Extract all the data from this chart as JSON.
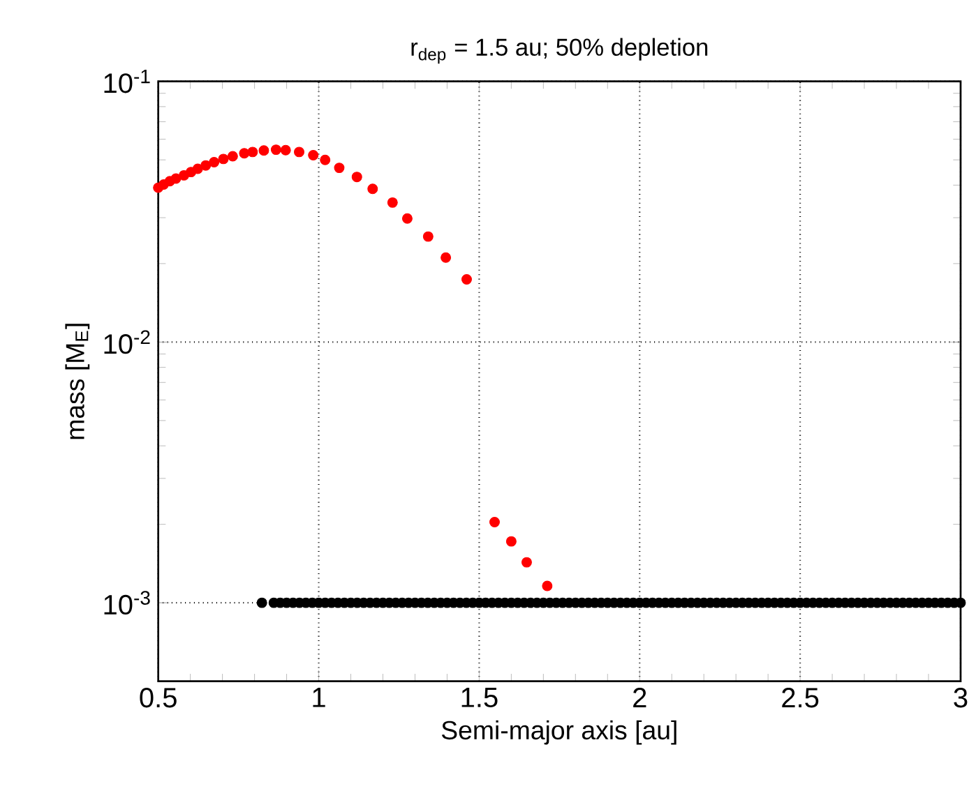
{
  "chart_data": {
    "type": "scatter",
    "title": "r$_{dep}$ = 1.5 au; 50% depletion",
    "xlabel": "Semi-major axis [au]",
    "ylabel": "mass [M$_{E}$]",
    "log": "y",
    "grid": true,
    "marker": "circle",
    "xlim": [
      0.5,
      3
    ],
    "ylim": [
      0.0005,
      0.1
    ],
    "xticks": [
      0.5,
      1,
      1.5,
      2,
      2.5,
      3
    ],
    "yticks": [
      {
        "value": 0.001,
        "label": "10$^{-3}$"
      },
      {
        "value": 0.01,
        "label": "10$^{-2}$"
      },
      {
        "value": 0.1,
        "label": "10$^{-1}$"
      }
    ],
    "series": [
      {
        "color": "#ff0000",
        "x": [
          0.5,
          0.517,
          0.536,
          0.555,
          0.58,
          0.602,
          0.623,
          0.648,
          0.674,
          0.703,
          0.732,
          0.768,
          0.794,
          0.829,
          0.867,
          0.897,
          0.939,
          0.983,
          1.02,
          1.064,
          1.119,
          1.168,
          1.23,
          1.276,
          1.341,
          1.396,
          1.461,
          1.548,
          1.6,
          1.648,
          1.712
        ],
        "values": [
          0.0391,
          0.0402,
          0.0414,
          0.0424,
          0.0436,
          0.0449,
          0.0462,
          0.0476,
          0.049,
          0.0504,
          0.0516,
          0.053,
          0.0536,
          0.0543,
          0.0547,
          0.0545,
          0.0536,
          0.0521,
          0.05,
          0.0466,
          0.043,
          0.0387,
          0.0343,
          0.0298,
          0.0254,
          0.0211,
          0.0174,
          0.00204,
          0.00172,
          0.00143,
          0.00116
        ]
      },
      {
        "color": "#000000",
        "x": [
          0.823,
          0.86,
          0.88,
          0.9,
          0.92,
          0.94,
          0.96,
          0.98,
          1.0,
          1.02,
          1.04,
          1.06,
          1.08,
          1.1,
          1.12,
          1.14,
          1.16,
          1.18,
          1.2,
          1.22,
          1.24,
          1.26,
          1.28,
          1.3,
          1.32,
          1.34,
          1.36,
          1.38,
          1.4,
          1.42,
          1.44,
          1.46,
          1.48,
          1.5,
          1.52,
          1.54,
          1.56,
          1.58,
          1.6,
          1.62,
          1.64,
          1.66,
          1.68,
          1.7,
          1.72,
          1.74,
          1.76,
          1.78,
          1.8,
          1.82,
          1.84,
          1.86,
          1.88,
          1.9,
          1.92,
          1.94,
          1.96,
          1.98,
          2.0,
          2.02,
          2.04,
          2.06,
          2.08,
          2.1,
          2.12,
          2.14,
          2.16,
          2.18,
          2.2,
          2.22,
          2.24,
          2.26,
          2.28,
          2.3,
          2.32,
          2.34,
          2.36,
          2.38,
          2.4,
          2.42,
          2.44,
          2.46,
          2.48,
          2.5,
          2.52,
          2.54,
          2.56,
          2.58,
          2.6,
          2.62,
          2.64,
          2.66,
          2.68,
          2.7,
          2.72,
          2.74,
          2.76,
          2.78,
          2.8,
          2.82,
          2.84,
          2.86,
          2.88,
          2.9,
          2.92,
          2.94,
          2.96,
          2.98,
          3.0
        ],
        "values": [
          0.001,
          0.001,
          0.001,
          0.001,
          0.001,
          0.001,
          0.001,
          0.001,
          0.001,
          0.001,
          0.001,
          0.001,
          0.001,
          0.001,
          0.001,
          0.001,
          0.001,
          0.001,
          0.001,
          0.001,
          0.001,
          0.001,
          0.001,
          0.001,
          0.001,
          0.001,
          0.001,
          0.001,
          0.001,
          0.001,
          0.001,
          0.001,
          0.001,
          0.001,
          0.001,
          0.001,
          0.001,
          0.001,
          0.001,
          0.001,
          0.001,
          0.001,
          0.001,
          0.001,
          0.001,
          0.001,
          0.001,
          0.001,
          0.001,
          0.001,
          0.001,
          0.001,
          0.001,
          0.001,
          0.001,
          0.001,
          0.001,
          0.001,
          0.001,
          0.001,
          0.001,
          0.001,
          0.001,
          0.001,
          0.001,
          0.001,
          0.001,
          0.001,
          0.001,
          0.001,
          0.001,
          0.001,
          0.001,
          0.001,
          0.001,
          0.001,
          0.001,
          0.001,
          0.001,
          0.001,
          0.001,
          0.001,
          0.001,
          0.001,
          0.001,
          0.001,
          0.001,
          0.001,
          0.001,
          0.001,
          0.001,
          0.001,
          0.001,
          0.001,
          0.001,
          0.001,
          0.001,
          0.001,
          0.001,
          0.001,
          0.001,
          0.001,
          0.001,
          0.001,
          0.001,
          0.001,
          0.001,
          0.001,
          0.001
        ]
      }
    ]
  }
}
